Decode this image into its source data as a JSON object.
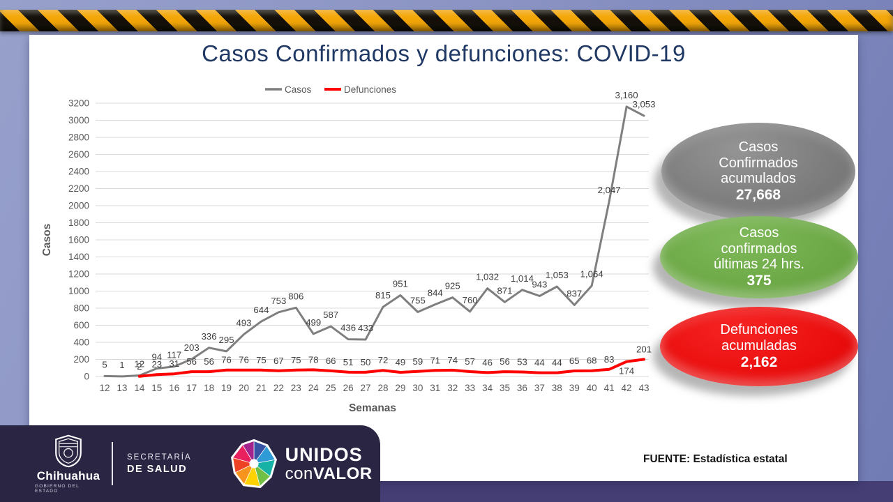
{
  "title": "Casos Confirmados y defunciones: COVID-19",
  "chart_data": {
    "type": "line",
    "title": "Casos Confirmados y defunciones: COVID-19",
    "xlabel": "Semanas",
    "ylabel": "Casos",
    "x": [
      12,
      13,
      14,
      15,
      16,
      17,
      18,
      19,
      20,
      21,
      22,
      23,
      24,
      25,
      26,
      27,
      28,
      29,
      30,
      31,
      32,
      33,
      34,
      35,
      36,
      37,
      38,
      39,
      40,
      41,
      42,
      43
    ],
    "ylim": [
      0,
      3200
    ],
    "ytick_step": 200,
    "grid": true,
    "legend_position": "top-center",
    "series": [
      {
        "name": "Casos",
        "color": "#7f7f7f",
        "values": [
          5,
          1,
          12,
          94,
          117,
          203,
          336,
          295,
          493,
          644,
          753,
          806,
          499,
          587,
          436,
          433,
          815,
          951,
          755,
          844,
          925,
          760,
          1032,
          871,
          1014,
          943,
          1053,
          837,
          1064,
          2047,
          3160,
          3053
        ]
      },
      {
        "name": "Defunciones",
        "color": "#ff0000",
        "values": [
          null,
          null,
          2,
          23,
          31,
          56,
          56,
          76,
          76,
          75,
          67,
          75,
          78,
          66,
          51,
          50,
          72,
          49,
          59,
          71,
          74,
          57,
          46,
          56,
          53,
          44,
          44,
          65,
          68,
          83,
          174,
          201
        ]
      }
    ]
  },
  "badges": {
    "cumulative_cases": {
      "line1": "Casos",
      "line2": "Confirmados",
      "line3": "acumulados",
      "value": "27,668",
      "color": "#7f7f7f"
    },
    "cases_24h": {
      "line1": "Casos",
      "line2": "confirmados",
      "line3": "últimas 24 hrs.",
      "value": "375",
      "color": "#70ad47"
    },
    "cumulative_deaths": {
      "line1": "Defunciones",
      "line2": "acumuladas",
      "value": "2,162",
      "color": "#ee1111"
    }
  },
  "footer": {
    "logo_title": "Chihuahua",
    "logo_subtitle": "GOBIERNO DEL ESTADO",
    "dept_line1": "SECRETARÍA",
    "dept_line2": "DE SALUD",
    "campaign_line1": "UNIDOS",
    "campaign_con": "con",
    "campaign_valor": "VALOR"
  },
  "source": "FUENTE: Estadística estatal"
}
